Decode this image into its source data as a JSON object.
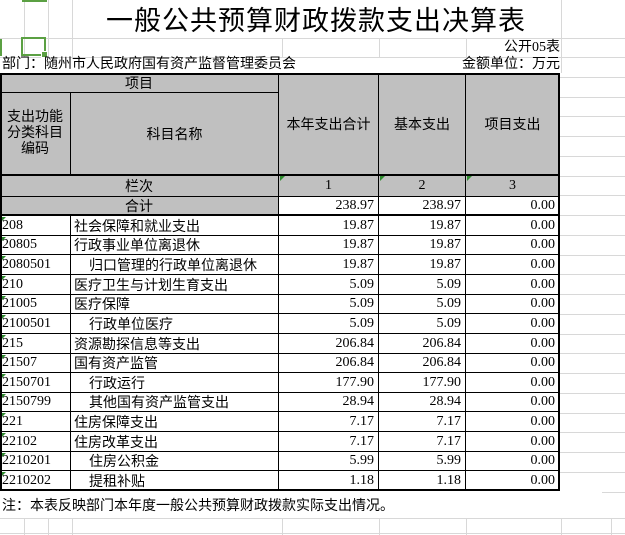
{
  "page": {
    "title": "一般公共预算财政拨款支出决算表",
    "table_code": "公开05表",
    "department_label": "部门：随州市人民政府国有资产监督管理委员会",
    "unit_label": "金额单位：万元",
    "note": "注：本表反映部门本年度一般公共预算财政拨款实际支出情况。"
  },
  "colors": {
    "header_bg": "#C0C0C0",
    "selection_green": "#5BA043",
    "triangle_green": "#2E8B2E",
    "gridline": "#D8D8D8",
    "border": "#000000"
  },
  "table": {
    "header": {
      "project_label": "项目",
      "code_label": "支出功能分类科目编码",
      "name_label": "科目名称",
      "col_total_label": "本年支出合计",
      "col_basic_label": "基本支出",
      "col_project_label": "项目支出",
      "row_index_label": "栏次",
      "col_indexes": [
        "1",
        "2",
        "3"
      ]
    },
    "total_row": {
      "label": "合计",
      "total": "238.97",
      "basic": "238.97",
      "project": "0.00"
    },
    "rows": [
      {
        "code": "208",
        "name": "社会保障和就业支出",
        "indent": false,
        "total": "19.87",
        "basic": "19.87",
        "project": "0.00"
      },
      {
        "code": "20805",
        "name": "行政事业单位离退休",
        "indent": false,
        "total": "19.87",
        "basic": "19.87",
        "project": "0.00"
      },
      {
        "code": "2080501",
        "name": "归口管理的行政单位离退休",
        "indent": true,
        "total": "19.87",
        "basic": "19.87",
        "project": "0.00"
      },
      {
        "code": "210",
        "name": "医疗卫生与计划生育支出",
        "indent": false,
        "total": "5.09",
        "basic": "5.09",
        "project": "0.00"
      },
      {
        "code": "21005",
        "name": "医疗保障",
        "indent": false,
        "total": "5.09",
        "basic": "5.09",
        "project": "0.00"
      },
      {
        "code": "2100501",
        "name": "行政单位医疗",
        "indent": true,
        "total": "5.09",
        "basic": "5.09",
        "project": "0.00"
      },
      {
        "code": "215",
        "name": "资源勘探信息等支出",
        "indent": false,
        "total": "206.84",
        "basic": "206.84",
        "project": "0.00"
      },
      {
        "code": "21507",
        "name": "国有资产监管",
        "indent": false,
        "total": "206.84",
        "basic": "206.84",
        "project": "0.00"
      },
      {
        "code": "2150701",
        "name": "行政运行",
        "indent": true,
        "total": "177.90",
        "basic": "177.90",
        "project": "0.00"
      },
      {
        "code": "2150799",
        "name": "其他国有资产监管支出",
        "indent": true,
        "total": "28.94",
        "basic": "28.94",
        "project": "0.00"
      },
      {
        "code": "221",
        "name": "住房保障支出",
        "indent": false,
        "total": "7.17",
        "basic": "7.17",
        "project": "0.00"
      },
      {
        "code": "22102",
        "name": "住房改革支出",
        "indent": false,
        "total": "7.17",
        "basic": "7.17",
        "project": "0.00"
      },
      {
        "code": "2210201",
        "name": "住房公积金",
        "indent": true,
        "total": "5.99",
        "basic": "5.99",
        "project": "0.00"
      },
      {
        "code": "2210202",
        "name": "提租补贴",
        "indent": true,
        "total": "1.18",
        "basic": "1.18",
        "project": "0.00"
      }
    ]
  }
}
